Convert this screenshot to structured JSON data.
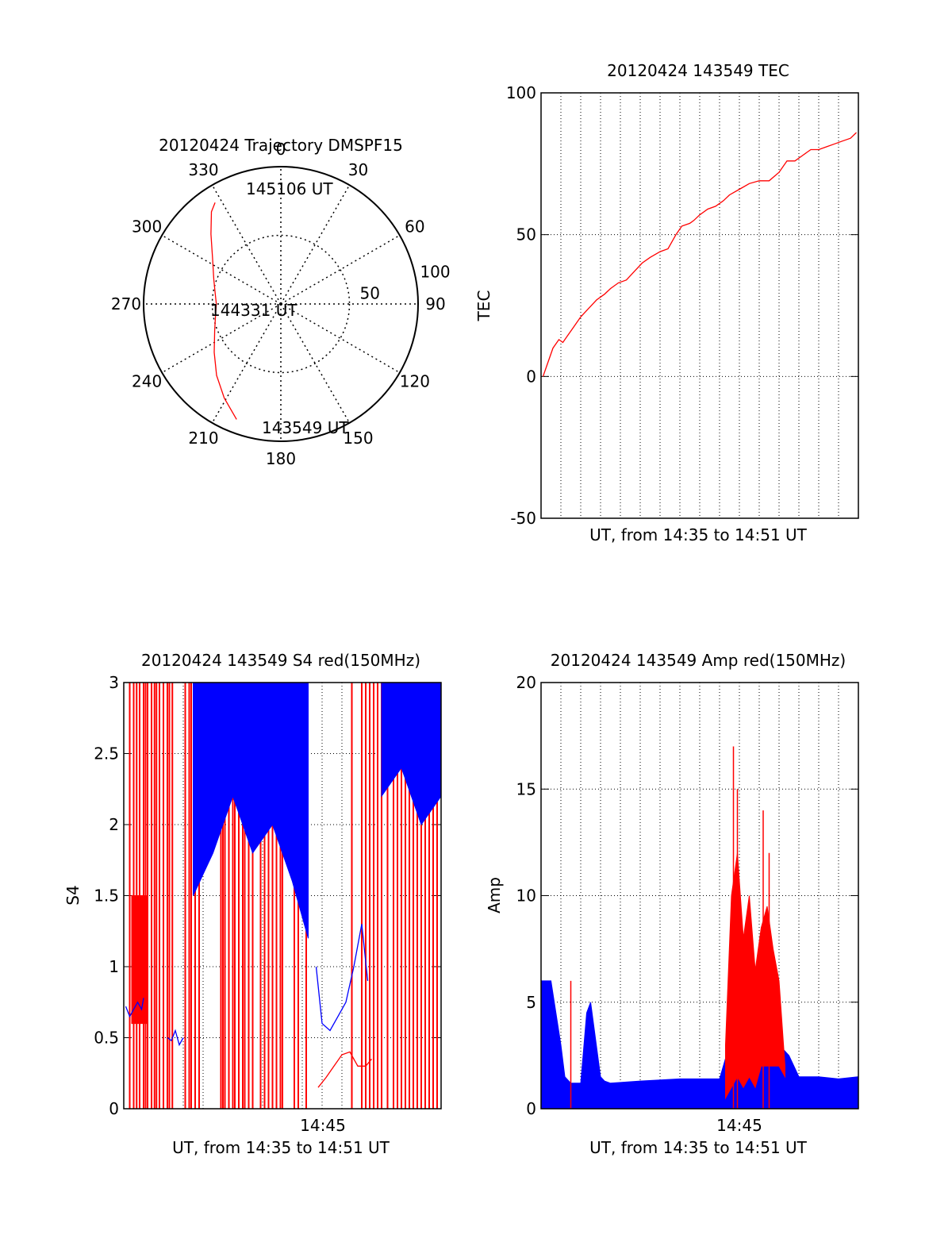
{
  "colors": {
    "red": "#ff0000",
    "blue": "#0000ff",
    "axis": "#000000",
    "grid": "#000000"
  },
  "chart_data": [
    {
      "type": "polar",
      "title": "20120424 Trajectory DMSPF15",
      "angle_labels": [
        "0",
        "30",
        "60",
        "90",
        "120",
        "150",
        "180",
        "210",
        "240",
        "270",
        "300",
        "330"
      ],
      "radial_labels": [
        "50",
        "100"
      ],
      "radial_ticks": [
        50,
        100
      ],
      "rmax": 100,
      "grid": true,
      "track_annotations": [
        "145106 UT",
        "144331 UT",
        "143549 UT"
      ],
      "series": [
        {
          "color": "#ff0000",
          "points": [
            [
              201,
              90
            ],
            [
              211,
              80
            ],
            [
              222,
              70
            ],
            [
              234,
              60
            ],
            [
              248,
              52
            ],
            [
              262,
              48
            ],
            [
              270,
              47
            ],
            [
              277,
              48
            ],
            [
              290,
              52
            ],
            [
              304,
              60
            ],
            [
              315,
              72
            ],
            [
              323,
              84
            ],
            [
              327,
              88
            ]
          ]
        }
      ]
    },
    {
      "type": "line",
      "title": "20120424 143549 TEC",
      "ylabel": "TEC",
      "xlabel": "UT, from 14:35 to 14:51 UT",
      "ylim": [
        -50,
        100
      ],
      "yticks": [
        "-50",
        "0",
        "50",
        "100"
      ],
      "xlim_minutes": [
        0,
        16
      ],
      "grid": true,
      "series": [
        {
          "color": "#ff0000",
          "x_min": [
            0.1,
            0.3,
            0.6,
            0.9,
            1.1,
            1.3,
            1.6,
            2.0,
            2.4,
            2.8,
            3.2,
            3.5,
            3.9,
            4.3,
            4.7,
            5.1,
            5.5,
            6.0,
            6.4,
            6.8,
            7.1,
            7.5,
            7.7,
            8.0,
            8.4,
            8.8,
            9.2,
            9.5,
            10.0,
            10.5,
            11.0,
            11.5,
            12.0,
            12.4,
            12.8,
            13.2,
            13.6,
            14.0,
            14.4,
            14.8,
            15.2,
            15.6,
            15.9
          ],
          "y": [
            0,
            4,
            10,
            13,
            12,
            14,
            17,
            21,
            24,
            27,
            29,
            31,
            33,
            34,
            37,
            40,
            42,
            44,
            45,
            50,
            53,
            54,
            55,
            57,
            59,
            60,
            62,
            64,
            66,
            68,
            69,
            69,
            72,
            76,
            76,
            78,
            80,
            80,
            81,
            82,
            83,
            84,
            86
          ]
        }
      ]
    },
    {
      "type": "line",
      "title": "20120424 143549 S4 red(150MHz)",
      "ylabel": "S4",
      "xlabel": "UT, from 14:35 to 14:51 UT",
      "xtick_labels": [
        "14:45"
      ],
      "ylim": [
        0,
        3
      ],
      "yticks": [
        "0",
        "0.5",
        "1",
        "1.5",
        "2",
        "2.5",
        "3"
      ],
      "xlim_minutes": [
        0,
        16
      ],
      "grid": true,
      "series": [
        {
          "name": "",
          "color": "#ff0000",
          "kind": "spikes",
          "spikes_min": [
            0.3,
            0.5,
            0.65,
            0.8,
            1.0,
            1.1,
            1.2,
            1.4,
            1.55,
            1.65,
            1.8,
            2.0,
            2.2,
            2.3,
            2.45,
            3.1,
            3.3,
            3.4,
            3.6,
            3.8,
            4.9,
            5.0,
            5.1,
            5.3,
            5.5,
            5.6,
            5.8,
            6.0,
            6.1,
            6.3,
            6.5,
            6.9,
            7.1,
            7.3,
            7.5,
            7.7,
            7.9,
            8.0,
            8.6,
            8.8,
            9.2,
            11.5,
            12.0,
            12.2,
            12.4,
            12.6,
            12.8,
            13.0,
            13.3,
            13.6,
            13.8,
            14.0,
            14.2,
            14.4,
            14.6,
            14.8,
            15.0,
            15.2,
            15.4,
            15.6,
            15.8
          ]
        },
        {
          "name": "",
          "color": "#ff0000",
          "kind": "band",
          "x_min": [
            0.4,
            0.8,
            1.2
          ],
          "lo": [
            0.6,
            0.6,
            0.6
          ],
          "hi": [
            1.5,
            1.5,
            1.5
          ]
        },
        {
          "name": "",
          "color": "#ff0000",
          "kind": "line",
          "x_min": [
            9.8,
            10.2,
            10.6,
            11.0,
            11.4,
            11.8,
            12.2,
            12.5
          ],
          "y": [
            0.15,
            0.22,
            0.3,
            0.38,
            0.4,
            0.3,
            0.3,
            0.35
          ]
        },
        {
          "name": "",
          "color": "#0000ff",
          "kind": "line",
          "x_min": [
            0.1,
            0.3,
            0.5,
            0.7,
            0.9,
            1.0
          ],
          "y": [
            0.72,
            0.65,
            0.7,
            0.75,
            0.7,
            0.78
          ]
        },
        {
          "name": "",
          "color": "#0000ff",
          "kind": "line",
          "x_min": [
            2.2,
            2.4,
            2.6,
            2.8,
            3.0
          ],
          "y": [
            0.5,
            0.48,
            0.55,
            0.45,
            0.5
          ]
        },
        {
          "name": "",
          "color": "#0000ff",
          "kind": "line",
          "x_min": [
            9.7,
            10.0,
            10.4,
            10.8,
            11.2,
            11.6,
            12.0,
            12.3
          ],
          "y": [
            1.0,
            0.6,
            0.55,
            0.65,
            0.75,
            1.0,
            1.3,
            0.9
          ]
        },
        {
          "name": "",
          "color": "#0000ff",
          "kind": "band",
          "x_min": [
            3.5,
            4.5,
            5.5,
            6.5,
            7.5,
            8.5,
            9.3
          ],
          "lo": [
            1.5,
            1.8,
            2.2,
            1.8,
            2.0,
            1.6,
            1.2
          ],
          "hi": [
            3.0,
            3.0,
            3.0,
            3.0,
            3.0,
            3.0,
            3.0
          ]
        },
        {
          "name": "",
          "color": "#0000ff",
          "kind": "band",
          "x_min": [
            13.0,
            14.0,
            15.0,
            16.0
          ],
          "lo": [
            2.2,
            2.4,
            2.0,
            2.2
          ],
          "hi": [
            3.0,
            3.0,
            3.0,
            3.0
          ]
        }
      ]
    },
    {
      "type": "line",
      "title": "20120424 143549 Amp red(150MHz)",
      "ylabel": "Amp",
      "xlabel": "UT, from 14:35 to 14:51 UT",
      "xtick_labels": [
        "14:45"
      ],
      "ylim": [
        0,
        20
      ],
      "yticks": [
        "0",
        "5",
        "10",
        "15",
        "20"
      ],
      "xlim_minutes": [
        0,
        16
      ],
      "grid": true,
      "series": [
        {
          "name": "",
          "color": "#0000ff",
          "kind": "band",
          "x_min": [
            0.0,
            0.5,
            1.0,
            1.2,
            1.5,
            2.0,
            2.3,
            2.5,
            3.0,
            3.2,
            3.5,
            5.0,
            7.0,
            9.0,
            9.5,
            10.0,
            10.5,
            11.0,
            11.5,
            12.0,
            12.5,
            13.0,
            14.0,
            15.0,
            16.0
          ],
          "lo": [
            0,
            0,
            0,
            0,
            0,
            0,
            0,
            0,
            0,
            0,
            0,
            0,
            0,
            0,
            0,
            0,
            0,
            0,
            0,
            0,
            0,
            0,
            0,
            0,
            0
          ],
          "hi": [
            6.0,
            6.0,
            3.0,
            1.5,
            1.2,
            1.2,
            4.5,
            5.0,
            1.5,
            1.3,
            1.2,
            1.3,
            1.4,
            1.4,
            3.0,
            7.0,
            5.0,
            4.0,
            3.5,
            3.0,
            2.5,
            1.5,
            1.5,
            1.4,
            1.5
          ]
        },
        {
          "name": "",
          "color": "#ff0000",
          "kind": "band",
          "x_min": [
            9.3,
            9.6,
            9.9,
            10.2,
            10.5,
            10.8,
            11.1,
            11.4,
            11.7,
            12.0,
            12.3
          ],
          "lo": [
            0.5,
            1.0,
            1.5,
            1.0,
            1.5,
            1.0,
            2.0,
            2.0,
            2.0,
            2.0,
            1.5
          ],
          "hi": [
            3.0,
            10.0,
            12.0,
            8.0,
            10.0,
            6.5,
            8.5,
            9.5,
            7.5,
            6.0,
            2.0
          ]
        },
        {
          "name": "",
          "color": "#ff0000",
          "kind": "spikes_val",
          "x_min": [
            1.5,
            9.7,
            9.9,
            11.2,
            11.5
          ],
          "y": [
            6.0,
            17.0,
            15.0,
            14.0,
            12.0
          ]
        }
      ]
    }
  ]
}
